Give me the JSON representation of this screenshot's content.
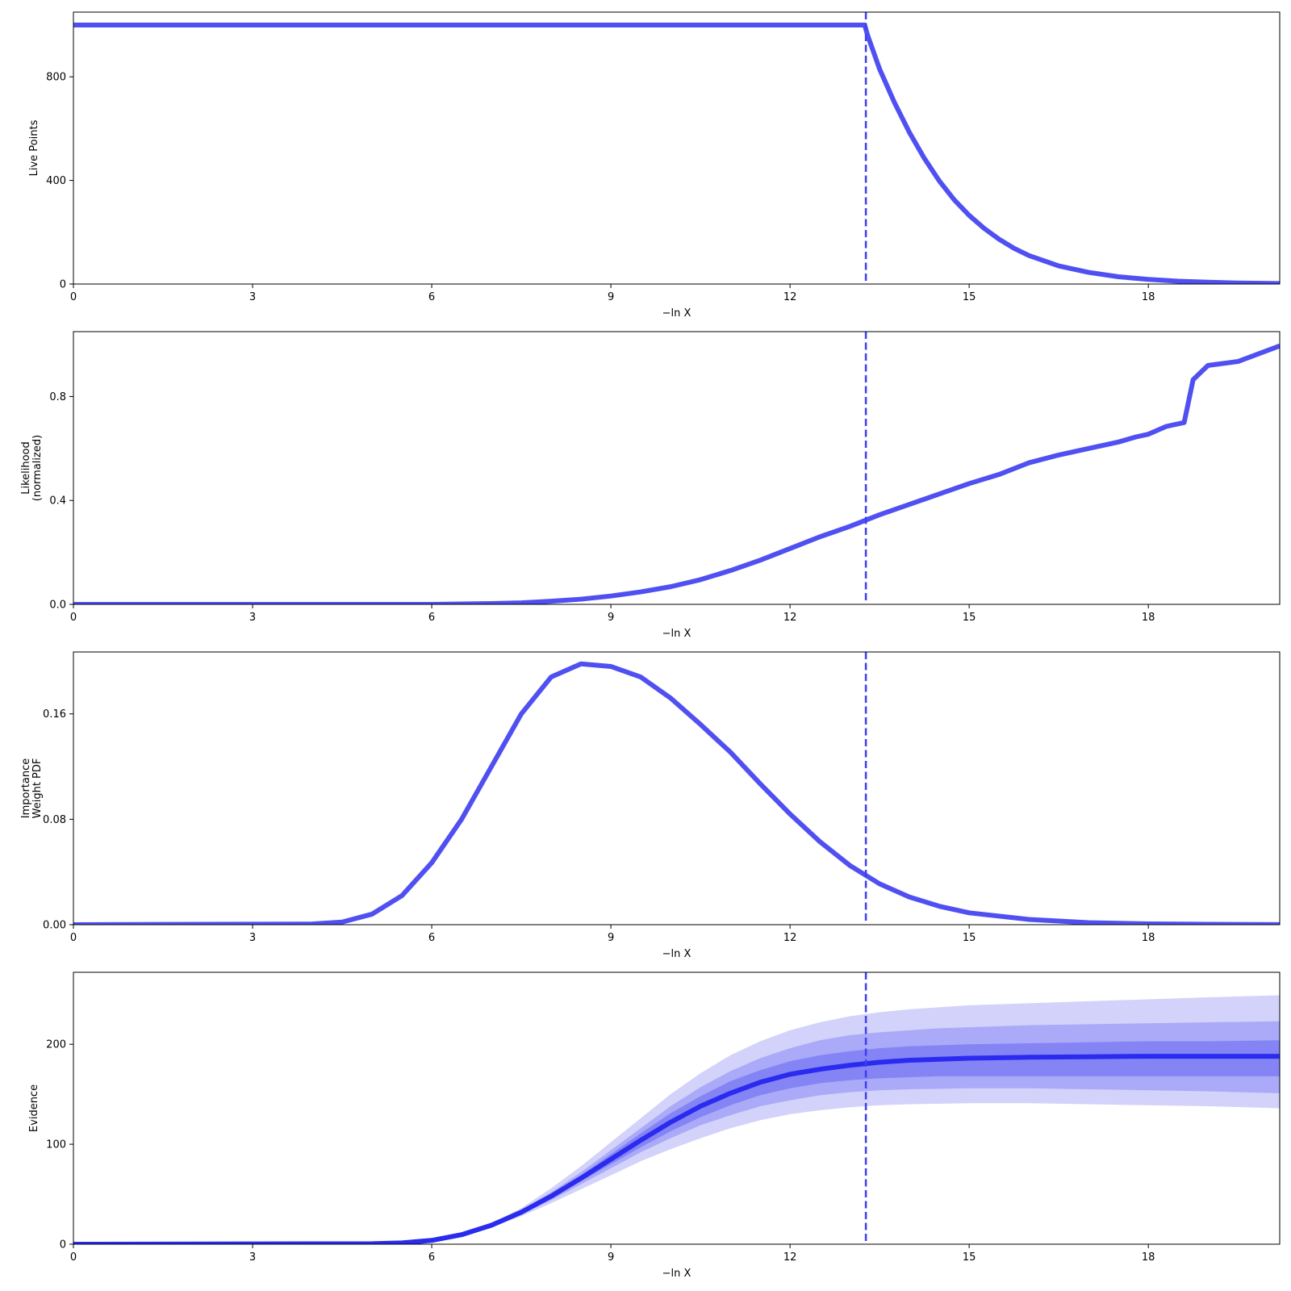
{
  "colors": {
    "line": "#5050f2",
    "marker": "#3f3ff0",
    "evidence_line": "#2b2bf0",
    "band_inner": "#7e7ef5",
    "band_mid": "#a3a3f7",
    "band_outer": "#cacafa"
  },
  "chart_data": [
    {
      "type": "line",
      "title": "",
      "xlabel": "−ln X",
      "ylabel": "Live Points",
      "xlim": [
        0,
        20.2
      ],
      "ylim": [
        0,
        1050
      ],
      "xticks": [
        0,
        3,
        6,
        9,
        12,
        15,
        18
      ],
      "yticks": [
        0,
        400,
        800
      ],
      "marker_x": 13.27,
      "series": [
        {
          "x": [
            0,
            13.25,
            13.3,
            13.5,
            13.75,
            14.0,
            14.25,
            14.5,
            14.75,
            15.0,
            15.25,
            15.5,
            15.75,
            16.0,
            16.5,
            17.0,
            17.5,
            18.0,
            18.5,
            19.0,
            19.5,
            20.2
          ],
          "y": [
            1000,
            1000,
            960,
            830,
            700,
            585,
            485,
            398,
            325,
            265,
            215,
            173,
            138,
            110,
            70,
            45,
            28,
            18,
            11,
            7,
            4,
            2
          ]
        }
      ]
    },
    {
      "type": "line",
      "title": "",
      "xlabel": "−ln X",
      "ylabel": [
        "Likelihood",
        "(normalized)"
      ],
      "xlim": [
        0,
        20.2
      ],
      "ylim": [
        0,
        1.05
      ],
      "xticks": [
        0,
        3,
        6,
        9,
        12,
        15,
        18
      ],
      "yticks": [
        "0.0",
        "0.4",
        "0.8"
      ],
      "ytick_values": [
        0,
        0.4,
        0.8
      ],
      "marker_x": 13.27,
      "series": [
        {
          "x": [
            0,
            6.0,
            7.0,
            7.5,
            8.0,
            8.5,
            9.0,
            9.5,
            10.0,
            10.5,
            11.0,
            11.5,
            12.0,
            12.5,
            13.0,
            13.5,
            14.0,
            14.5,
            15.0,
            15.5,
            16.0,
            16.5,
            17.0,
            17.5,
            17.8,
            18.0,
            18.3,
            18.6,
            18.75,
            19.0,
            19.5,
            20.2
          ],
          "y": [
            0.0,
            0.0,
            0.003,
            0.006,
            0.012,
            0.02,
            0.032,
            0.048,
            0.068,
            0.095,
            0.13,
            0.17,
            0.215,
            0.26,
            0.3,
            0.345,
            0.385,
            0.425,
            0.465,
            0.5,
            0.545,
            0.575,
            0.6,
            0.625,
            0.645,
            0.655,
            0.685,
            0.7,
            0.865,
            0.92,
            0.935,
            0.995
          ]
        }
      ]
    },
    {
      "type": "line",
      "title": "",
      "xlabel": "−ln X",
      "ylabel": [
        "Importance",
        "Weight PDF"
      ],
      "xlim": [
        0,
        20.2
      ],
      "ylim": [
        0,
        0.207
      ],
      "xticks": [
        0,
        3,
        6,
        9,
        12,
        15,
        18
      ],
      "yticks": [
        "0.00",
        "0.08",
        "0.16"
      ],
      "ytick_values": [
        0,
        0.08,
        0.16
      ],
      "marker_x": 13.27,
      "series": [
        {
          "x": [
            0,
            4.0,
            4.5,
            5.0,
            5.5,
            6.0,
            6.5,
            7.0,
            7.5,
            8.0,
            8.5,
            9.0,
            9.5,
            10.0,
            10.5,
            11.0,
            11.5,
            12.0,
            12.5,
            13.0,
            13.5,
            14.0,
            14.5,
            15.0,
            16.0,
            17.0,
            18.0,
            19.0,
            20.2
          ],
          "y": [
            0.0,
            0.0005,
            0.002,
            0.008,
            0.022,
            0.047,
            0.08,
            0.12,
            0.16,
            0.188,
            0.198,
            0.196,
            0.188,
            0.172,
            0.152,
            0.131,
            0.107,
            0.084,
            0.063,
            0.045,
            0.031,
            0.021,
            0.014,
            0.009,
            0.004,
            0.0015,
            0.0006,
            0.0003,
            0.0001
          ]
        }
      ]
    },
    {
      "type": "area",
      "title": "",
      "xlabel": "−ln X",
      "ylabel": "Evidence",
      "xlim": [
        0,
        20.2
      ],
      "ylim": [
        0,
        272
      ],
      "xticks": [
        0,
        3,
        6,
        9,
        12,
        15,
        18
      ],
      "yticks": [
        0,
        100,
        200
      ],
      "marker_x": 13.27,
      "x": [
        0,
        5,
        5.5,
        6,
        6.5,
        7,
        7.5,
        8,
        8.5,
        9,
        9.5,
        10,
        10.5,
        11,
        11.5,
        12,
        12.5,
        13,
        13.5,
        14,
        14.5,
        15,
        16,
        17,
        18,
        19,
        20.2
      ],
      "series": [
        {
          "name": "",
          "values": [
            0,
            0.5,
            1.3,
            3.8,
            9.5,
            19,
            32,
            48,
            66,
            85,
            104,
            122,
            138,
            151,
            162,
            170,
            175,
            179,
            182,
            184,
            185,
            186,
            187,
            187.5,
            188,
            188,
            188
          ]
        }
      ],
      "bands": [
        {
          "lower": [
            0,
            0.5,
            1.3,
            3.7,
            9.1,
            18,
            30,
            44,
            60,
            76,
            92,
            106,
            119,
            129,
            138,
            144,
            149,
            152,
            154,
            155,
            155.5,
            156,
            156,
            155,
            154,
            153,
            151
          ],
          "upper": [
            0,
            0.5,
            1.3,
            3.9,
            9.9,
            20,
            34,
            52,
            72,
            94,
            116,
            138,
            157,
            173,
            186,
            196,
            204,
            209,
            212,
            214,
            216,
            217,
            219,
            220,
            221,
            222,
            223
          ]
        },
        {
          "lower": [
            0,
            0.5,
            1.3,
            3.6,
            8.8,
            17,
            28,
            41,
            55,
            69,
            83,
            95,
            106,
            116,
            124,
            130,
            134,
            137,
            139,
            140,
            140.5,
            141,
            141,
            140,
            139,
            138,
            136
          ],
          "upper": [
            0,
            0.5,
            1.3,
            4.0,
            10.3,
            21,
            36,
            56,
            78,
            102,
            126,
            150,
            171,
            189,
            203,
            214,
            222,
            228,
            232,
            235,
            237,
            239,
            241,
            243,
            245,
            247,
            249
          ]
        },
        {
          "lower": [
            0,
            0.5,
            1.3,
            3.8,
            9.3,
            18.5,
            31,
            46,
            63,
            80,
            97,
            113,
            127,
            139,
            149,
            156,
            161,
            164,
            166,
            167,
            168,
            168,
            168,
            168,
            168,
            168,
            168
          ],
          "upper": [
            0,
            0.5,
            1.3,
            3.85,
            9.7,
            19.5,
            33,
            50,
            69,
            90,
            111,
            131,
            148,
            163,
            174,
            183,
            189,
            193,
            196,
            198,
            199,
            200,
            201,
            202,
            203,
            203,
            204
          ]
        }
      ]
    }
  ]
}
